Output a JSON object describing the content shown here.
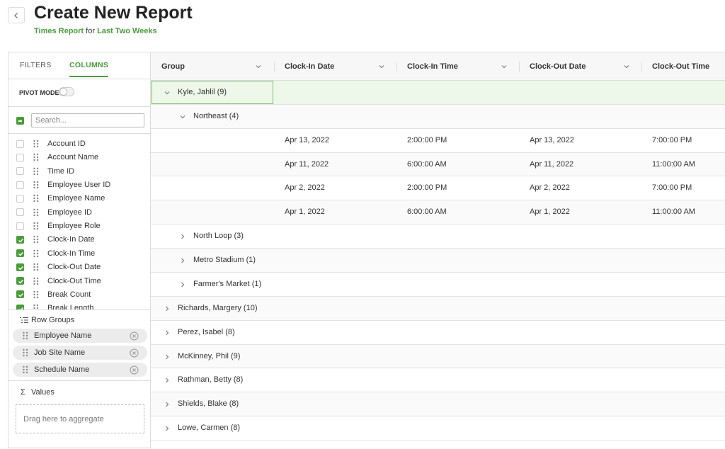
{
  "header": {
    "title": "Create New Report",
    "report_name": "Times Report",
    "for_text": "for",
    "period": "Last Two Weeks"
  },
  "sidebar": {
    "tabs": [
      {
        "label": "FILTERS",
        "active": false
      },
      {
        "label": "COLUMNS",
        "active": true
      }
    ],
    "pivot_mode": {
      "label": "PIVOT MODE",
      "on": false
    },
    "search_placeholder": "Search...",
    "columns": [
      {
        "label": "Account ID",
        "checked": false
      },
      {
        "label": "Account Name",
        "checked": false
      },
      {
        "label": "Time ID",
        "checked": false
      },
      {
        "label": "Employee User ID",
        "checked": false
      },
      {
        "label": "Employee Name",
        "checked": false
      },
      {
        "label": "Employee ID",
        "checked": false
      },
      {
        "label": "Employee Role",
        "checked": false
      },
      {
        "label": "Clock-In Date",
        "checked": true
      },
      {
        "label": "Clock-In Time",
        "checked": true
      },
      {
        "label": "Clock-Out Date",
        "checked": true
      },
      {
        "label": "Clock-Out Time",
        "checked": true
      },
      {
        "label": "Break Count",
        "checked": true
      },
      {
        "label": "Break Length",
        "checked": true
      }
    ],
    "row_groups": {
      "title": "Row Groups",
      "items": [
        "Employee Name",
        "Job Site Name",
        "Schedule Name"
      ]
    },
    "values": {
      "title": "Values",
      "placeholder": "Drag here to aggregate"
    }
  },
  "grid": {
    "headers": [
      "Group",
      "Clock-In Date",
      "Clock-In Time",
      "Clock-Out Date",
      "Clock-Out Time"
    ],
    "groups": [
      {
        "label": "Kyle, Jahlil (9)",
        "expanded": true,
        "selected": true,
        "children": [
          {
            "label": "Northeast (4)",
            "expanded": true,
            "rows": [
              [
                "Apr 13, 2022",
                "2:00:00 PM",
                "Apr 13, 2022",
                "7:00:00 PM"
              ],
              [
                "Apr 11, 2022",
                "6:00:00 AM",
                "Apr 11, 2022",
                "11:00:00 AM"
              ],
              [
                "Apr 2, 2022",
                "2:00:00 PM",
                "Apr 2, 2022",
                "7:00:00 PM"
              ],
              [
                "Apr 1, 2022",
                "6:00:00 AM",
                "Apr 1, 2022",
                "11:00:00 AM"
              ]
            ]
          },
          {
            "label": "North Loop (3)",
            "expanded": false
          },
          {
            "label": "Metro Stadium (1)",
            "expanded": false
          },
          {
            "label": "Farmer's Market (1)",
            "expanded": false
          }
        ]
      },
      {
        "label": "Richards, Margery (10)",
        "expanded": false
      },
      {
        "label": "Perez, Isabel (8)",
        "expanded": false
      },
      {
        "label": "McKinney, Phil (9)",
        "expanded": false
      },
      {
        "label": "Rathman, Betty (8)",
        "expanded": false
      },
      {
        "label": "Shields, Blake (8)",
        "expanded": false
      },
      {
        "label": "Lowe, Carmen (8)",
        "expanded": false
      }
    ]
  }
}
